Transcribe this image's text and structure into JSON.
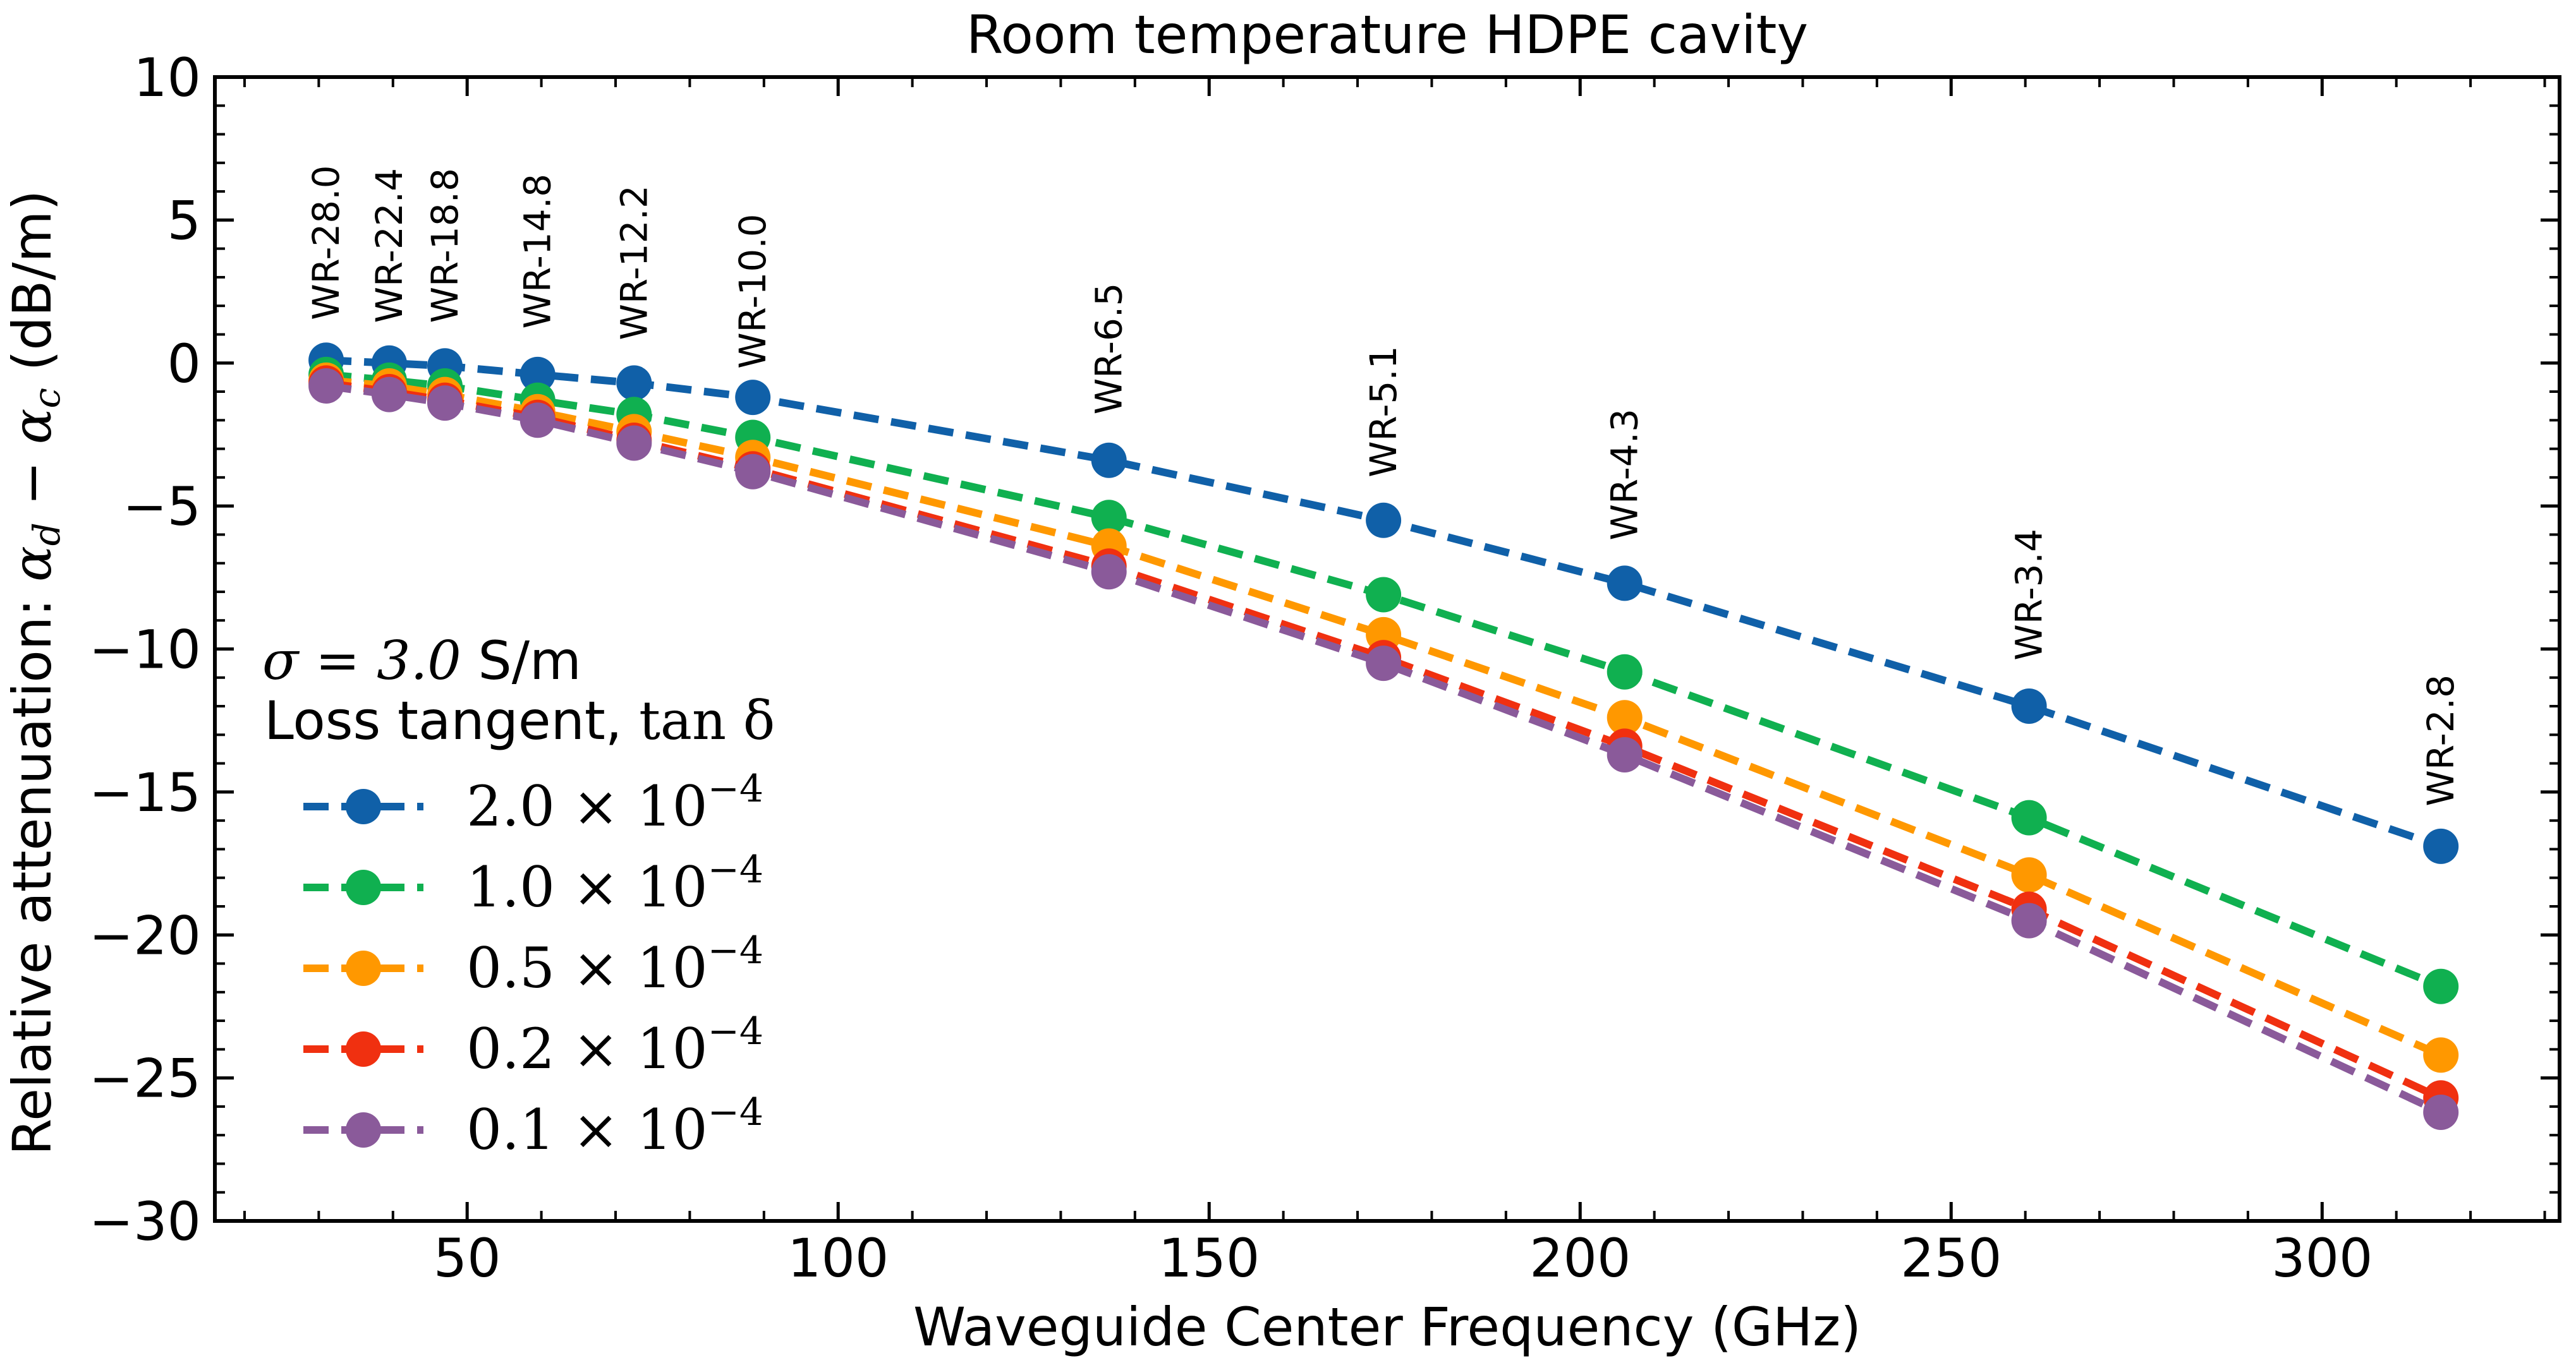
{
  "chart_data": {
    "type": "line",
    "title": "Room temperature HDPE cavity",
    "xlabel": "Waveguide Center Frequency (GHz)",
    "ylabel": {
      "prefix": "Relative attenuation: ",
      "math": "α",
      "sub_d": "d",
      "minus": " − ",
      "sub_c": "c",
      "suffix": " (dB/m)"
    },
    "xlim": [
      16,
      332
    ],
    "ylim": [
      -30,
      10
    ],
    "xticks": [
      50,
      100,
      150,
      200,
      250,
      300
    ],
    "xtick_labels": [
      "50",
      "100",
      "150",
      "200",
      "250",
      "300"
    ],
    "yticks": [
      -30,
      -25,
      -20,
      -15,
      -10,
      -5,
      0,
      5,
      10
    ],
    "ytick_labels": [
      "−30",
      "−25",
      "−20",
      "−15",
      "−10",
      "−5",
      "0",
      "5",
      "10"
    ],
    "grid": false,
    "legend_position": "lower-left",
    "legend_title": {
      "line1_math": "σ = 3.0",
      "line1_unit": " S/m",
      "line2_text": "Loss tangent, ",
      "line2_math": "tan δ"
    },
    "x": [
      31,
      39.5,
      47,
      59.5,
      72.5,
      88.5,
      136.5,
      173.5,
      206,
      260.5,
      316
    ],
    "waveguides": [
      "WR-28.0",
      "WR-22.4",
      "WR-18.8",
      "WR-14.8",
      "WR-12.2",
      "WR-10.0",
      "WR-6.5",
      "WR-5.1",
      "WR-4.3",
      "WR-3.4",
      "WR-2.8"
    ],
    "waveguide_label_y": [
      1.5,
      1.4,
      1.4,
      1.2,
      0.8,
      -0.2,
      -1.8,
      -4.0,
      -6.2,
      -10.4,
      -15.5
    ],
    "series": [
      {
        "name": "2.0 × 10⁻⁴",
        "mantissa": "2.0",
        "exponent": "−4",
        "color": "#1060a8",
        "values": [
          0.1,
          0.0,
          -0.1,
          -0.4,
          -0.7,
          -1.2,
          -3.4,
          -5.5,
          -7.7,
          -12.0,
          -16.9
        ]
      },
      {
        "name": "1.0 × 10⁻⁴",
        "mantissa": "1.0",
        "exponent": "−4",
        "color": "#10b050",
        "values": [
          -0.4,
          -0.6,
          -0.8,
          -1.3,
          -1.8,
          -2.6,
          -5.4,
          -8.1,
          -10.8,
          -15.9,
          -21.8
        ]
      },
      {
        "name": "0.5 × 10⁻⁴",
        "mantissa": "0.5",
        "exponent": "−4",
        "color": "#ff9800",
        "values": [
          -0.6,
          -0.8,
          -1.1,
          -1.7,
          -2.4,
          -3.3,
          -6.4,
          -9.5,
          -12.4,
          -17.9,
          -24.2
        ]
      },
      {
        "name": "0.2 × 10⁻⁴",
        "mantissa": "0.2",
        "exponent": "−4",
        "color": "#f03010",
        "values": [
          -0.7,
          -1.0,
          -1.3,
          -1.9,
          -2.7,
          -3.7,
          -7.1,
          -10.3,
          -13.4,
          -19.1,
          -25.7
        ]
      },
      {
        "name": "0.1 × 10⁻⁴",
        "mantissa": "0.1",
        "exponent": "−4",
        "color": "#8a5a9a",
        "values": [
          -0.8,
          -1.1,
          -1.4,
          -2.0,
          -2.8,
          -3.8,
          -7.3,
          -10.5,
          -13.7,
          -19.5,
          -26.2
        ]
      }
    ]
  }
}
